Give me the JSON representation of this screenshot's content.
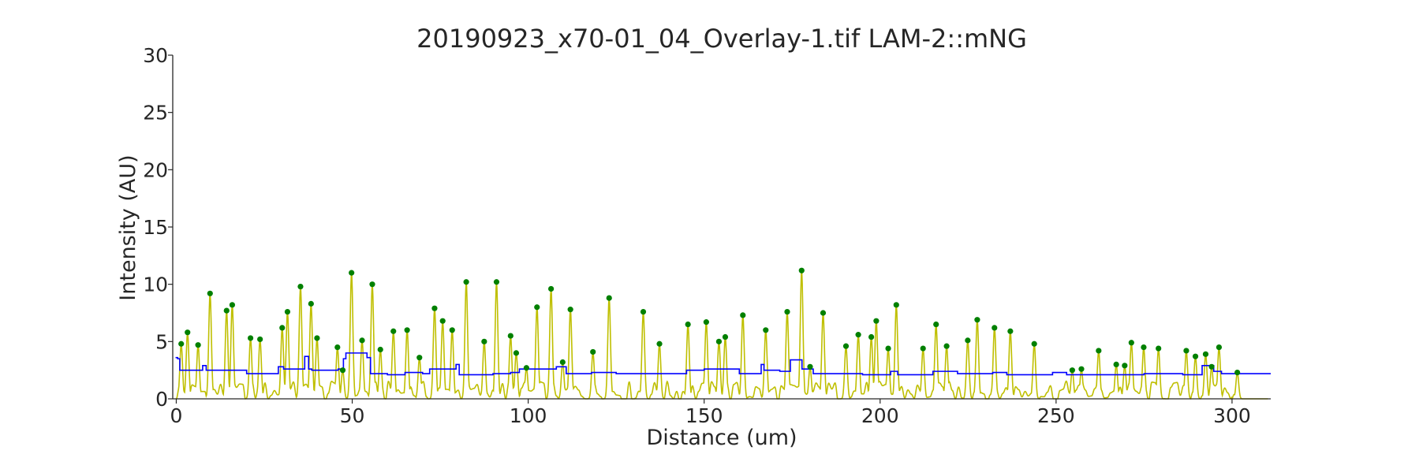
{
  "chart_data": {
    "type": "line",
    "title": "20190923_x70-01_04_Overlay-1.tif LAM-2::mNG",
    "xlabel": "Distance (um)",
    "ylabel": "Intensity (AU)",
    "xlim": [
      -1,
      311
    ],
    "ylim": [
      0,
      30
    ],
    "xticks": [
      0,
      50,
      100,
      150,
      200,
      250,
      300
    ],
    "yticks": [
      0,
      5,
      10,
      15,
      20,
      25,
      30
    ],
    "grid": false,
    "legend": "none",
    "colors": {
      "signal": "#bfbf00",
      "baseline": "#0000ff",
      "peaks": "#008000",
      "axis": "#262626"
    },
    "series": [
      {
        "type": "peaks",
        "x": [
          1.4,
          3.2,
          6.2,
          9.6,
          14.3,
          15.9,
          21.1,
          23.8,
          30.1,
          31.6,
          35.3,
          38.3,
          40.0,
          45.8,
          47.3,
          49.8,
          52.8,
          55.7,
          58.0,
          61.7,
          65.6,
          69.1,
          73.4,
          75.7,
          78.4,
          82.4,
          87.5,
          91.0,
          95.0,
          96.6,
          99.5,
          102.5,
          106.5,
          109.8,
          112.0,
          118.4,
          123.0,
          132.7,
          137.3,
          145.4,
          150.6,
          154.2,
          156.0,
          161.0,
          167.5,
          173.6,
          177.7,
          180.1,
          183.8,
          190.3,
          193.8,
          197.5,
          198.9,
          202.3,
          204.6,
          212.2,
          215.9,
          218.9,
          224.9,
          227.6,
          232.5,
          237.0,
          243.8,
          254.6,
          257.2,
          262.1,
          267.1,
          269.5,
          271.4,
          274.9,
          279.1,
          287.0,
          289.6,
          292.5,
          294.2,
          296.3,
          301.5
        ],
        "y": [
          4.8,
          5.8,
          4.7,
          9.2,
          7.7,
          8.2,
          5.3,
          5.2,
          6.2,
          7.6,
          9.8,
          8.3,
          5.3,
          4.5,
          2.5,
          11.0,
          5.1,
          10.0,
          4.3,
          5.9,
          6.0,
          3.6,
          7.9,
          6.8,
          6.0,
          10.2,
          5.0,
          10.2,
          5.5,
          4.0,
          2.7,
          8.0,
          9.6,
          3.2,
          7.8,
          4.1,
          8.8,
          7.6,
          4.8,
          6.5,
          6.7,
          5.0,
          5.4,
          7.3,
          6.0,
          7.6,
          11.2,
          2.8,
          7.5,
          4.6,
          5.6,
          5.4,
          6.8,
          4.4,
          8.2,
          4.4,
          6.5,
          4.6,
          5.1,
          6.9,
          6.2,
          5.9,
          4.8,
          2.5,
          2.6,
          4.2,
          3.0,
          2.9,
          4.9,
          4.5,
          4.4,
          4.2,
          3.7,
          3.9,
          2.8,
          4.5,
          2.3
        ]
      },
      {
        "type": "baseline",
        "steps": [
          [
            -0.2,
            3.6
          ],
          [
            0.4,
            3.5
          ],
          [
            1.0,
            2.5
          ],
          [
            7.5,
            2.9
          ],
          [
            8.5,
            2.5
          ],
          [
            12.0,
            2.5
          ],
          [
            20.0,
            2.2
          ],
          [
            28.0,
            2.2
          ],
          [
            29.0,
            2.8
          ],
          [
            30.5,
            2.6
          ],
          [
            36.5,
            3.7
          ],
          [
            37.6,
            2.6
          ],
          [
            38.5,
            2.5
          ],
          [
            46.0,
            2.6
          ],
          [
            47.5,
            3.5
          ],
          [
            48.2,
            4.0
          ],
          [
            54.2,
            3.6
          ],
          [
            55.2,
            2.2
          ],
          [
            60.0,
            2.1
          ],
          [
            65.0,
            2.3
          ],
          [
            70.0,
            2.2
          ],
          [
            72.0,
            2.6
          ],
          [
            79.5,
            3.0
          ],
          [
            80.4,
            2.1
          ],
          [
            90.0,
            2.2
          ],
          [
            95.0,
            2.3
          ],
          [
            97.5,
            2.6
          ],
          [
            108.0,
            2.8
          ],
          [
            110.8,
            2.2
          ],
          [
            118.0,
            2.3
          ],
          [
            125.0,
            2.2
          ],
          [
            140.0,
            2.2
          ],
          [
            145.0,
            2.5
          ],
          [
            150.0,
            2.6
          ],
          [
            160.0,
            2.2
          ],
          [
            166.2,
            3.0
          ],
          [
            167.0,
            2.5
          ],
          [
            171.5,
            2.4
          ],
          [
            174.5,
            3.4
          ],
          [
            177.8,
            2.6
          ],
          [
            181.0,
            2.2
          ],
          [
            195.0,
            2.1
          ],
          [
            203.0,
            2.4
          ],
          [
            205.0,
            2.1
          ],
          [
            215.0,
            2.4
          ],
          [
            222.0,
            2.2
          ],
          [
            232.0,
            2.3
          ],
          [
            236.0,
            2.1
          ],
          [
            247.0,
            2.1
          ],
          [
            249.0,
            2.3
          ],
          [
            253.0,
            2.1
          ],
          [
            270.0,
            2.1
          ],
          [
            275.0,
            2.2
          ],
          [
            286.0,
            2.1
          ],
          [
            291.5,
            2.9
          ],
          [
            294.8,
            2.4
          ],
          [
            297.0,
            2.2
          ],
          [
            311.0,
            2.2
          ]
        ]
      }
    ]
  }
}
